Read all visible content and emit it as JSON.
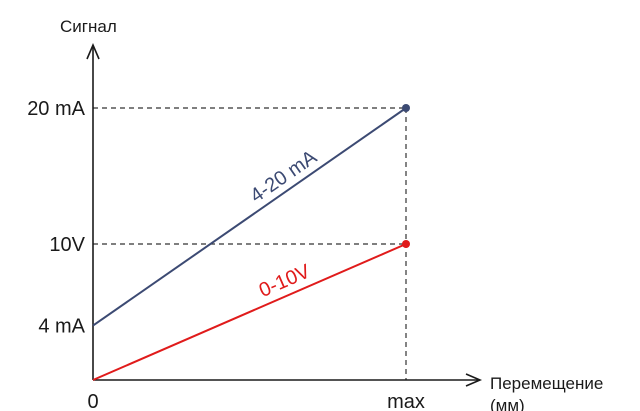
{
  "chart_data": {
    "type": "line",
    "ylabel": "Сигнал",
    "xlabel": "Перемещение (мм)",
    "xlabel_lines": [
      "Перемещение",
      "(мм)"
    ],
    "x_ticks": [
      {
        "label": "0",
        "value": 0
      },
      {
        "label": "max",
        "value": 1
      }
    ],
    "y_ticks": [
      {
        "label": "20 mA",
        "value": 20
      },
      {
        "label": "10V",
        "value": 10
      },
      {
        "label": "4 mA",
        "value": 4
      }
    ],
    "series": [
      {
        "name": "4-20 mA",
        "color": "#3c4a73",
        "x": [
          0,
          1
        ],
        "y": [
          4,
          20
        ],
        "end_marker": true
      },
      {
        "name": "0-10V",
        "color": "#e01b1b",
        "x": [
          0,
          1
        ],
        "y": [
          0,
          10
        ],
        "end_marker": true
      }
    ],
    "guides": [
      {
        "kind": "horizontal",
        "y": 20,
        "to_x": 1
      },
      {
        "kind": "horizontal",
        "y": 10,
        "to_x": 1
      },
      {
        "kind": "vertical",
        "x": 1,
        "from_y": 0,
        "to_y": 20
      }
    ],
    "grid": false
  }
}
